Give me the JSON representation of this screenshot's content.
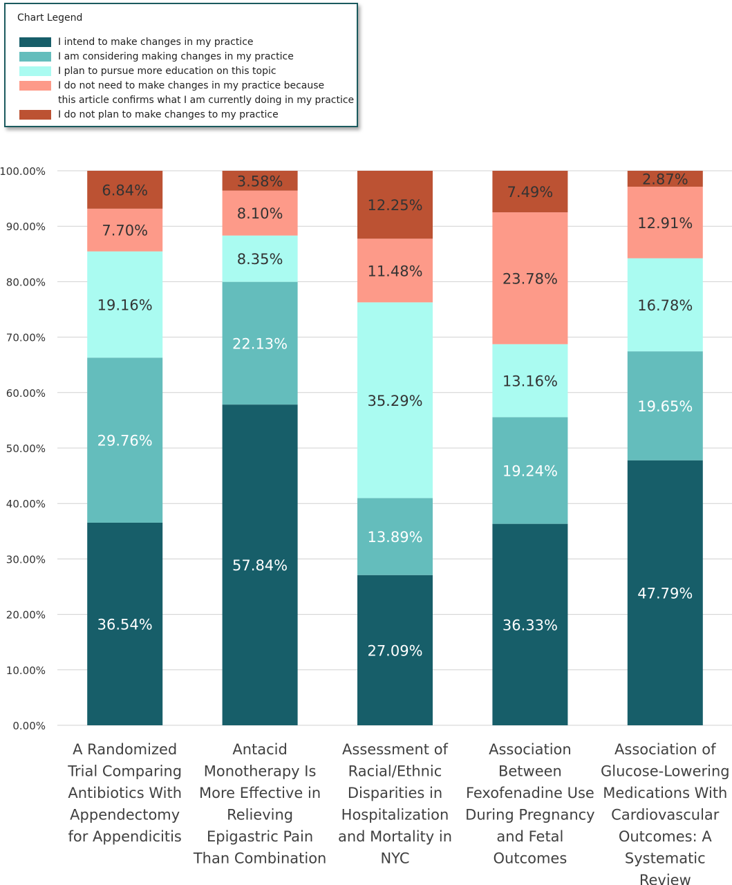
{
  "legend": {
    "title": "Chart Legend",
    "items": [
      {
        "label": "I intend to make changes in my practice",
        "color": "#175e69"
      },
      {
        "label": "I am considering making changes in my practice",
        "color": "#64bdbc"
      },
      {
        "label": "I plan to pursue more education on this topic",
        "color": "#aafbf1"
      },
      {
        "label": "I do not need to make changes in my practice because\nthis article confirms what I am currently doing in my practice",
        "color": "#fd9a89"
      },
      {
        "label": "I do not plan to make changes to my practice",
        "color": "#bc5233"
      }
    ]
  },
  "chart_data": {
    "type": "bar",
    "stacked": true,
    "categories": [
      "A Randomized Trial Comparing Antibiotics With Appendectomy for Appendicitis",
      "Antacid Monotherapy Is More Effective in Relieving Epigastric Pain Than Combination",
      "Assessment of Racial/Ethnic Disparities in Hospitalization and Mortality in NYC",
      "Association Between Fexofenadine Use During Pregnancy and Fetal Outcomes",
      "Association of Glucose-Lowering Medications With Cardiovascular Outcomes: A Systematic Review"
    ],
    "category_lines": [
      [
        "A Randomized",
        "Trial Comparing",
        "Antibiotics With",
        "Appendectomy",
        "for Appendicitis"
      ],
      [
        "Antacid",
        "Monotherapy Is",
        "More Effective in",
        "Relieving",
        "Epigastric Pain",
        "Than Combination"
      ],
      [
        "Assessment of",
        "Racial/Ethnic",
        "Disparities in",
        "Hospitalization",
        "and Mortality in",
        "NYC"
      ],
      [
        "Association",
        "Between",
        "Fexofenadine Use",
        "During Pregnancy",
        "and Fetal",
        "Outcomes"
      ],
      [
        "Association of",
        "Glucose-Lowering",
        "Medications With",
        "Cardiovascular",
        "Outcomes: A",
        "Systematic",
        "Review"
      ]
    ],
    "series": [
      {
        "name": "I intend to make changes in my practice",
        "values": [
          36.54,
          57.84,
          27.09,
          36.33,
          47.79
        ],
        "labels": [
          "36.54%",
          "57.84%",
          "27.09%",
          "36.33%",
          "47.79%"
        ],
        "color": "#175e69",
        "label_color": "#ffffff"
      },
      {
        "name": "I am considering making changes in my practice",
        "values": [
          29.76,
          22.13,
          13.89,
          19.24,
          19.65
        ],
        "labels": [
          "29.76%",
          "22.13%",
          "13.89%",
          "19.24%",
          "19.65%"
        ],
        "color": "#64bdbc",
        "label_color": "#ffffff"
      },
      {
        "name": "I plan to pursue more education on this topic",
        "values": [
          19.16,
          8.35,
          35.29,
          13.16,
          16.78
        ],
        "labels": [
          "19.16%",
          "8.35%",
          "35.29%",
          "13.16%",
          "16.78%"
        ],
        "color": "#aafbf1",
        "label_color": "#333333"
      },
      {
        "name": "I do not need to make changes in my practice because this article confirms what I am currently doing in my practice",
        "values": [
          7.7,
          8.1,
          11.48,
          23.78,
          12.91
        ],
        "labels": [
          "7.70%",
          "8.10%",
          "11.48%",
          "23.78%",
          "12.91%"
        ],
        "color": "#fd9a89",
        "label_color": "#333333"
      },
      {
        "name": "I do not plan to make changes to my practice",
        "values": [
          6.84,
          3.58,
          12.25,
          7.49,
          2.87
        ],
        "labels": [
          "6.84%",
          "3.58%",
          "12.25%",
          "7.49%",
          "2.87%"
        ],
        "color": "#bc5233",
        "label_color": "#333333"
      }
    ],
    "yticks": [
      "0.00%",
      "10.00%",
      "20.00%",
      "30.00%",
      "40.00%",
      "50.00%",
      "60.00%",
      "70.00%",
      "80.00%",
      "90.00%",
      "100.00%"
    ],
    "ylim": [
      0,
      100
    ],
    "grid": true,
    "legend_position": "top-left"
  }
}
